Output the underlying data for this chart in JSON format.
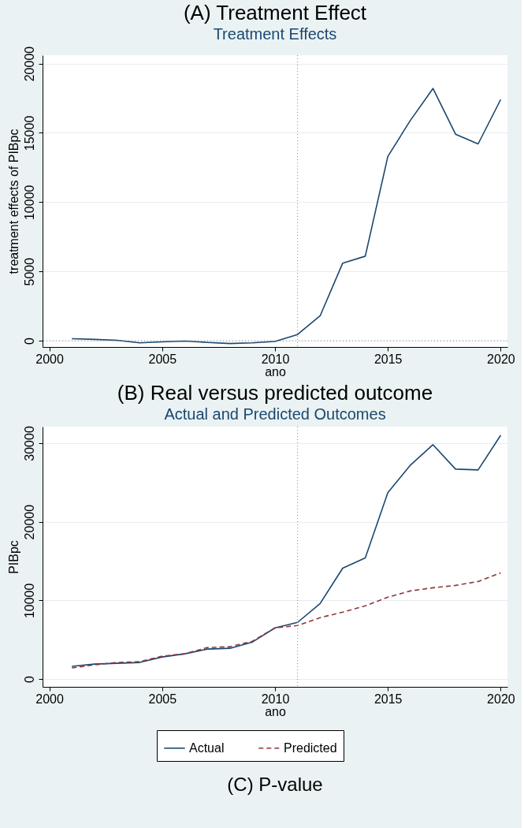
{
  "chart_data": [
    {
      "type": "line",
      "title": "(A) Treatment Effect",
      "subtitle": "Treatment Effects",
      "xlabel": "ano",
      "ylabel": "treatment effects of PIBpc",
      "x": [
        2001,
        2002,
        2003,
        2004,
        2005,
        2006,
        2007,
        2008,
        2009,
        2010,
        2011,
        2012,
        2013,
        2014,
        2015,
        2016,
        2017,
        2018,
        2019,
        2020
      ],
      "series": [
        {
          "color": "#1a476f",
          "line_style": "solid",
          "values": [
            150,
            100,
            30,
            -150,
            -80,
            -20,
            -120,
            -200,
            -150,
            -50,
            450,
            1800,
            5600,
            6100,
            13300,
            15900,
            18200,
            14900,
            14200,
            17400
          ]
        }
      ],
      "xlim": [
        1999.7,
        2020.3
      ],
      "ylim": [
        -450,
        20600
      ],
      "xticks": [
        2000,
        2005,
        2010,
        2015,
        2020
      ],
      "yticks": [
        0,
        5000,
        10000,
        15000,
        20000
      ],
      "grid": "y",
      "ref_lines": [
        {
          "axis": "x",
          "value": 2011,
          "line_style": "dotted",
          "color": "#888888"
        },
        {
          "axis": "y",
          "value": 0,
          "line_style": "dotted",
          "color": "#888888"
        }
      ]
    },
    {
      "type": "line",
      "title": "(B) Real versus predicted outcome",
      "subtitle": "Actual and Predicted Outcomes",
      "xlabel": "ano",
      "ylabel": "PIBpc",
      "x": [
        2001,
        2002,
        2003,
        2004,
        2005,
        2006,
        2007,
        2008,
        2009,
        2010,
        2011,
        2012,
        2013,
        2014,
        2015,
        2016,
        2017,
        2018,
        2019,
        2020
      ],
      "series": [
        {
          "name": "Actual",
          "color": "#1a476f",
          "line_style": "solid",
          "values": [
            1600,
            1900,
            2000,
            2100,
            2800,
            3200,
            3800,
            3900,
            4700,
            6500,
            7200,
            9600,
            14100,
            15400,
            23700,
            27200,
            29800,
            26700,
            26600,
            31000
          ]
        },
        {
          "name": "Predicted",
          "color": "#90353b",
          "line_style": "dashed",
          "values": [
            1400,
            1800,
            2100,
            2200,
            2900,
            3200,
            4000,
            4100,
            4800,
            6500,
            6800,
            7800,
            8500,
            9300,
            10400,
            11200,
            11600,
            11900,
            12400,
            13500
          ]
        }
      ],
      "xlim": [
        1999.7,
        2020.3
      ],
      "ylim": [
        -1000,
        32100
      ],
      "xticks": [
        2000,
        2005,
        2010,
        2015,
        2020
      ],
      "yticks": [
        0,
        10000,
        20000,
        30000
      ],
      "grid": "y",
      "legend": "bottom",
      "ref_lines": [
        {
          "axis": "x",
          "value": 2011,
          "line_style": "dotted",
          "color": "#888888"
        }
      ],
      "annotations": [
        "(C) P-value"
      ]
    }
  ]
}
